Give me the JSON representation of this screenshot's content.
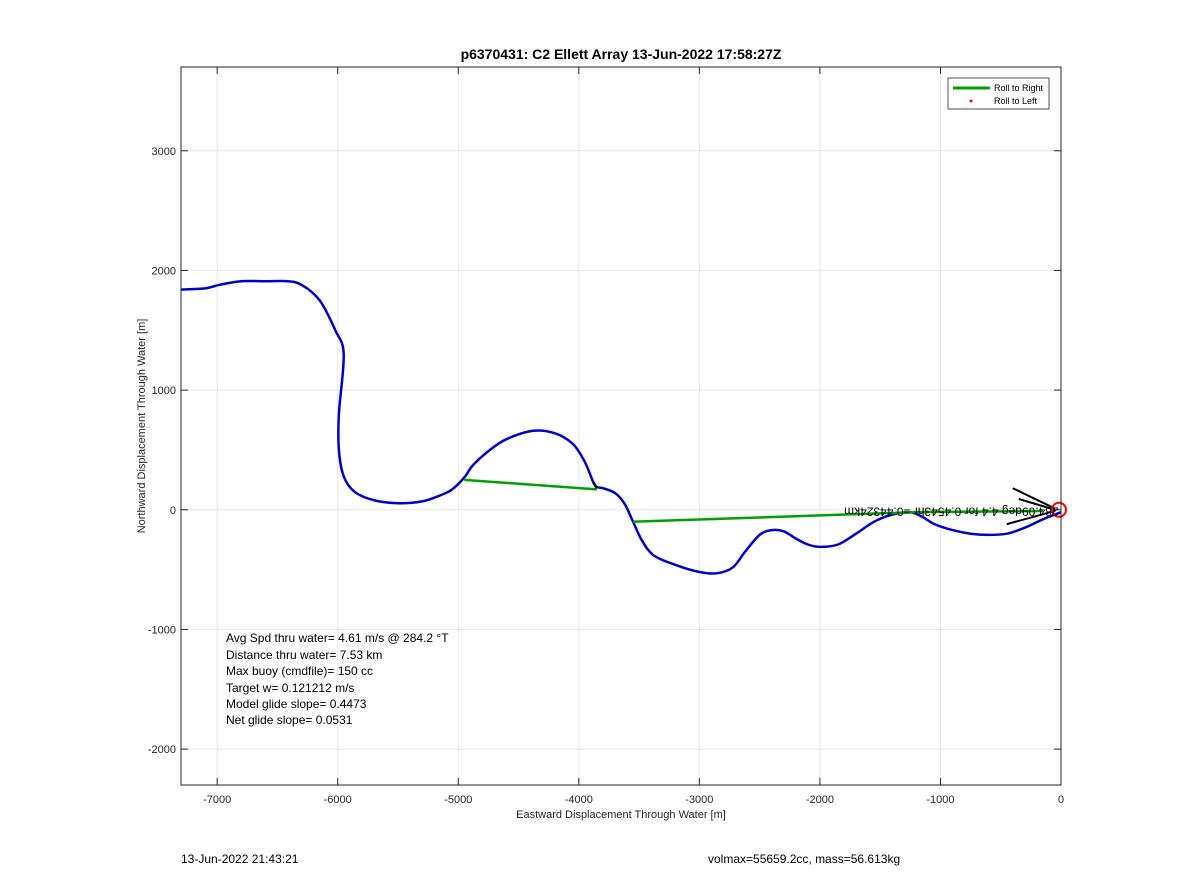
{
  "chart_data": {
    "type": "line",
    "title": "p6370431: C2 Ellett Array 13-Jun-2022 17:58:27Z",
    "xlabel": "Eastward Displacement Through Water [m]",
    "ylabel": "Northward Displacement Through Water [m]",
    "xlim": [
      -7300,
      0
    ],
    "ylim": [
      -2300,
      3700
    ],
    "xticks": [
      -7000,
      -6000,
      -5000,
      -4000,
      -3000,
      -2000,
      -1000,
      0
    ],
    "yticks": [
      -2000,
      -1000,
      0,
      1000,
      2000,
      3000
    ],
    "grid": true,
    "legend": {
      "placement": "top-right",
      "entries": [
        {
          "label": "Roll to Right",
          "color": "#00a000",
          "marker": "line"
        },
        {
          "label": "Roll to Left",
          "color": "#ff0000",
          "marker": "dot"
        }
      ]
    },
    "series": [
      {
        "color": "#0000cc",
        "x": [
          -7300,
          -7100,
          -6980,
          -6800,
          -6600,
          -6420,
          -6300,
          -6150,
          -6020,
          -5950,
          -5990,
          -5990,
          -5950,
          -5860,
          -5700,
          -5500,
          -5300,
          -5150,
          -5050,
          -4950,
          -4880,
          -4750,
          -4600,
          -4380,
          -4200,
          -4050,
          -3950,
          -3880,
          -3850,
          -3800,
          -3700,
          -3620,
          -3550,
          -3480,
          -3380,
          -3200,
          -3000,
          -2850,
          -2720,
          -2620,
          -2500,
          -2400,
          -2300,
          -2200,
          -2100,
          -2000,
          -1850,
          -1700,
          -1550,
          -1400,
          -1250,
          -1150,
          -1050,
          -900,
          -750,
          -600,
          -450,
          -300,
          -150,
          0
        ],
        "y": [
          1840,
          1850,
          1880,
          1910,
          1910,
          1910,
          1880,
          1750,
          1500,
          1300,
          800,
          500,
          280,
          150,
          80,
          55,
          70,
          120,
          170,
          270,
          370,
          490,
          590,
          660,
          640,
          550,
          400,
          230,
          190,
          180,
          140,
          50,
          -100,
          -250,
          -380,
          -460,
          -520,
          -530,
          -480,
          -350,
          -210,
          -170,
          -180,
          -240,
          -290,
          -310,
          -290,
          -200,
          -100,
          -40,
          -20,
          -60,
          -120,
          -170,
          -200,
          -210,
          -200,
          -150,
          -80,
          -20
        ]
      }
    ],
    "segments": [
      {
        "color": "#00a000",
        "x": [
          -4950,
          -3850
        ],
        "y": [
          250,
          170
        ]
      },
      {
        "color": "#00a000",
        "x": [
          -3550,
          -1200
        ],
        "y": [
          -100,
          -20
        ]
      },
      {
        "color": "#00a000",
        "x": [
          -1200,
          -150
        ],
        "y": [
          -20,
          -10
        ]
      },
      {
        "color": "#000000",
        "x": [
          -3880,
          -3850
        ],
        "y": [
          230,
          180
        ]
      }
    ],
    "arrows": [
      {
        "color": "#000000",
        "x": [
          -400,
          -50
        ],
        "y": [
          180,
          10
        ]
      },
      {
        "color": "#000000",
        "x": [
          -450,
          -50
        ],
        "y": [
          -120,
          -10
        ]
      },
      {
        "color": "#000000",
        "x": [
          -350,
          -50
        ],
        "y": [
          90,
          0
        ]
      }
    ],
    "end_marker": {
      "x": 0,
      "y": 0,
      "color": "#ff0000"
    },
    "annotation_text": "284.09deg 4.4 for 0.4543 hr =0.4432 km",
    "annotation_text_display": "284.09deg 4.4 for 0.4543hr =0.44324km",
    "annotation_anchor": {
      "x": -20,
      "y": 20
    },
    "stats_lines": [
      "Avg Spd thru water=  4.61 m/s @ 284.2 °T",
      "Distance thru water=  7.53 km",
      "Max buoy (cmdfile)= 150 cc",
      "Target w= 0.121212 m/s",
      "Model glide slope= 0.4473",
      "Net glide slope= 0.0531"
    ]
  },
  "footer": {
    "timestamp": "13-Jun-2022 21:43:21",
    "mass_info": "volmax=55659.2cc, mass=56.613kg"
  }
}
